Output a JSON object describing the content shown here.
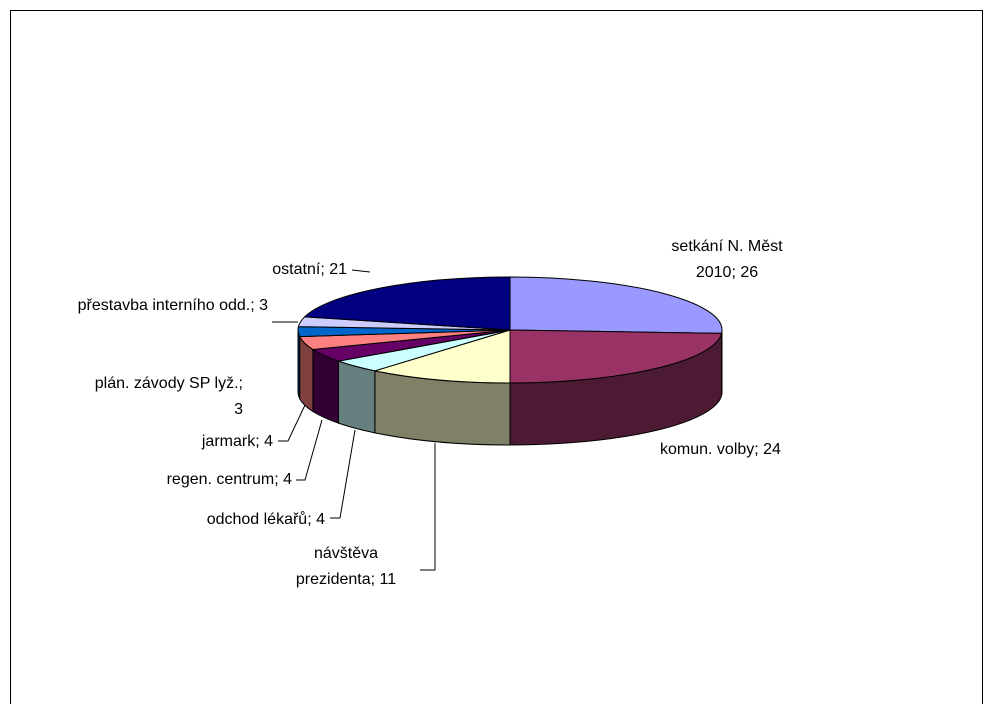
{
  "chart_data": {
    "type": "pie3d",
    "value_labels": [
      "setkání N. Měst 2010; 26",
      "komun. volby; 24",
      "návštěva prezidenta; 11",
      "odchod lékařů; 4",
      "regen. centrum; 4",
      "jarmark; 4",
      "plán. závody SP lyž.; 3",
      "přestavba interního odd.; 3",
      "ostatní; 21"
    ],
    "values": [
      26,
      24,
      11,
      4,
      4,
      4,
      3,
      3,
      21
    ],
    "colors": [
      "#9999ff",
      "#993366",
      "#ffffcc",
      "#ccffff",
      "#660066",
      "#ff8080",
      "#0066cc",
      "#ccccff",
      "#000080"
    ]
  }
}
